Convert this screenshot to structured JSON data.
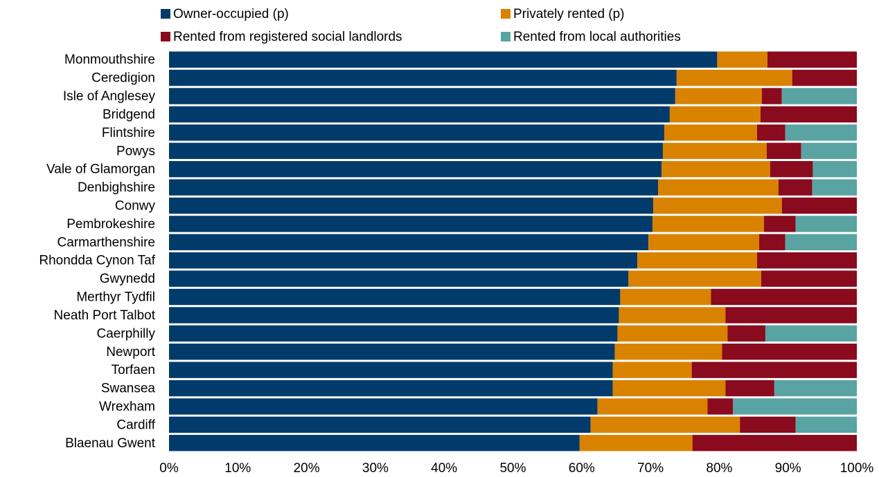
{
  "chart_data": {
    "type": "stacked-bar-horizontal",
    "categories": [
      "Monmouthshire",
      "Ceredigion",
      "Isle of Anglesey",
      "Bridgend",
      "Flintshire",
      "Powys",
      "Vale of Glamorgan",
      "Denbighshire",
      "Conwy",
      "Pembrokeshire",
      "Carmarthenshire",
      "Rhondda Cynon Taf",
      "Gwynedd",
      "Merthyr Tydfil",
      "Neath Port Talbot",
      "Caerphilly",
      "Newport",
      "Torfaen",
      "Swansea",
      "Wrexham",
      "Cardiff",
      "Blaenau Gwent"
    ],
    "series": [
      {
        "name": "Owner-occupied (p)",
        "color": "#003b6b",
        "values": [
          79.7,
          73.8,
          73.6,
          72.8,
          72.0,
          71.8,
          71.6,
          71.1,
          70.4,
          70.3,
          69.7,
          68.1,
          66.8,
          65.6,
          65.4,
          65.2,
          64.8,
          64.5,
          64.5,
          62.3,
          61.3,
          59.7
        ]
      },
      {
        "name": "Privately rented (p)",
        "color": "#d98200",
        "values": [
          7.3,
          16.8,
          12.6,
          13.2,
          13.5,
          15.1,
          15.8,
          17.5,
          18.7,
          16.2,
          16.1,
          17.4,
          19.3,
          13.2,
          15.5,
          16.0,
          15.6,
          11.5,
          16.4,
          16.0,
          21.7,
          16.4
        ]
      },
      {
        "name": "Rented from registered social landlords",
        "color": "#8a0a1e",
        "values": [
          13.0,
          9.4,
          2.9,
          14.0,
          4.1,
          5.0,
          6.2,
          4.9,
          10.9,
          4.6,
          3.8,
          14.5,
          13.9,
          21.2,
          19.1,
          5.5,
          19.6,
          24.0,
          7.1,
          3.7,
          8.1,
          23.9
        ]
      },
      {
        "name": "Rented from local authorities",
        "color": "#5aa3a3",
        "values": [
          0,
          0,
          10.9,
          0,
          10.4,
          8.1,
          6.4,
          6.5,
          0,
          8.9,
          10.4,
          0,
          0,
          0,
          0,
          13.3,
          0,
          0,
          12.0,
          18.0,
          8.9,
          0
        ]
      }
    ],
    "xlim": [
      0,
      100
    ],
    "xticks": [
      {
        "value": 0,
        "label": "0%"
      },
      {
        "value": 10,
        "label": "10%"
      },
      {
        "value": 20,
        "label": "20%"
      },
      {
        "value": 30,
        "label": "30%"
      },
      {
        "value": 40,
        "label": "40%"
      },
      {
        "value": 50,
        "label": "50%"
      },
      {
        "value": 60,
        "label": "60%"
      },
      {
        "value": 70,
        "label": "70%"
      },
      {
        "value": 80,
        "label": "80%"
      },
      {
        "value": 90,
        "label": "90%"
      },
      {
        "value": 100,
        "label": "100%"
      }
    ]
  }
}
